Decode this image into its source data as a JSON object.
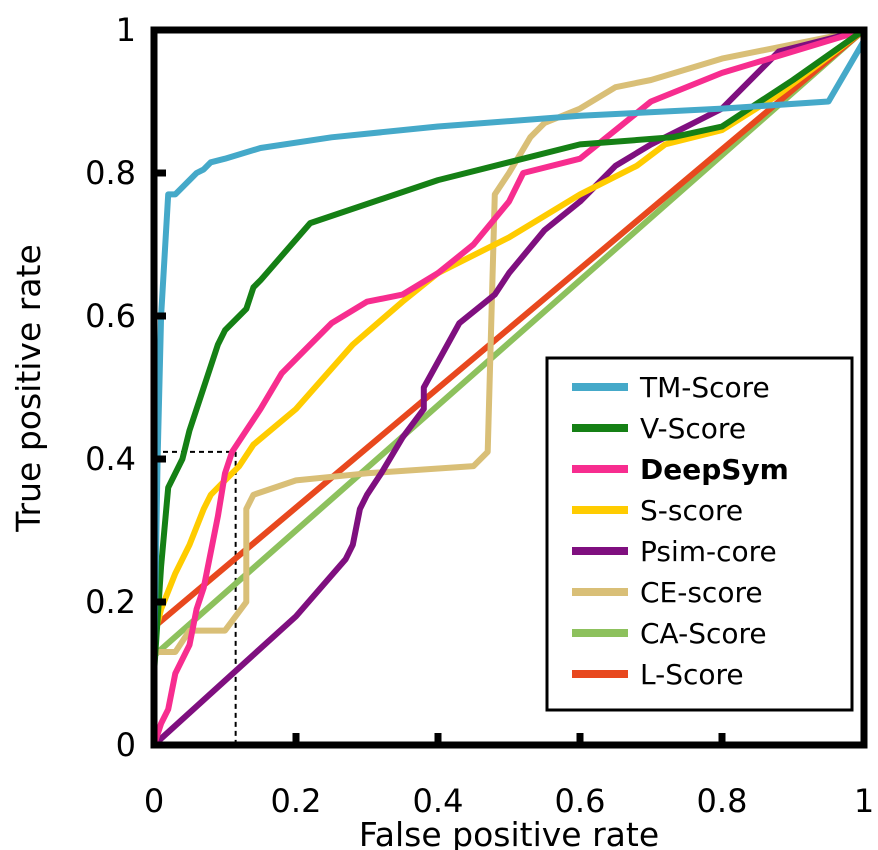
{
  "chart_data": {
    "type": "line",
    "title": "",
    "xlabel": "False positive rate",
    "ylabel": "True positive rate",
    "xlim": [
      0,
      1
    ],
    "ylim": [
      0,
      1
    ],
    "x_ticks": [
      "0",
      "0.2",
      "0.4",
      "0.6",
      "0.8",
      "1"
    ],
    "y_ticks": [
      "0",
      "0.2",
      "0.4",
      "0.6",
      "0.8",
      "1"
    ],
    "x_tick_values": [
      0,
      0.2,
      0.4,
      0.6,
      0.8,
      1
    ],
    "y_tick_values": [
      0,
      0.2,
      0.4,
      0.6,
      0.8,
      1
    ],
    "grid": false,
    "legend_position": "bottom-right",
    "annotation": {
      "type": "dashed-guide",
      "x": 0.115,
      "y": 0.41
    },
    "series": [
      {
        "name": "TM-Score",
        "color": "#45a9c9",
        "bold": false,
        "x": [
          0,
          0.005,
          0.01,
          0.02,
          0.03,
          0.04,
          0.05,
          0.06,
          0.07,
          0.08,
          0.1,
          0.15,
          0.25,
          0.4,
          0.6,
          0.8,
          0.95,
          1
        ],
        "y": [
          0.1,
          0.4,
          0.6,
          0.77,
          0.77,
          0.78,
          0.79,
          0.8,
          0.805,
          0.815,
          0.82,
          0.835,
          0.85,
          0.865,
          0.88,
          0.89,
          0.9,
          0.985
        ]
      },
      {
        "name": "V-Score",
        "color": "#158015",
        "bold": false,
        "x": [
          0,
          0.01,
          0.02,
          0.04,
          0.05,
          0.07,
          0.09,
          0.1,
          0.12,
          0.13,
          0.14,
          0.15,
          0.22,
          0.4,
          0.6,
          0.73,
          0.8,
          0.9,
          1
        ],
        "y": [
          0.1,
          0.25,
          0.36,
          0.4,
          0.44,
          0.5,
          0.56,
          0.58,
          0.6,
          0.61,
          0.64,
          0.65,
          0.73,
          0.79,
          0.84,
          0.85,
          0.865,
          0.93,
          1
        ]
      },
      {
        "name": "DeepSym",
        "color": "#f72d8f",
        "bold": true,
        "x": [
          0,
          0.01,
          0.02,
          0.03,
          0.05,
          0.06,
          0.07,
          0.08,
          0.09,
          0.1,
          0.11,
          0.13,
          0.15,
          0.18,
          0.22,
          0.25,
          0.3,
          0.35,
          0.4,
          0.45,
          0.5,
          0.52,
          0.6,
          0.7,
          0.8,
          0.9,
          1
        ],
        "y": [
          0,
          0.03,
          0.05,
          0.1,
          0.14,
          0.19,
          0.22,
          0.27,
          0.32,
          0.38,
          0.41,
          0.44,
          0.47,
          0.52,
          0.56,
          0.59,
          0.62,
          0.63,
          0.66,
          0.7,
          0.76,
          0.8,
          0.82,
          0.9,
          0.94,
          0.97,
          1
        ]
      },
      {
        "name": "S-score",
        "color": "#ffcc00",
        "bold": false,
        "x": [
          0,
          0.01,
          0.03,
          0.05,
          0.07,
          0.08,
          0.1,
          0.12,
          0.14,
          0.2,
          0.28,
          0.35,
          0.4,
          0.5,
          0.55,
          0.6,
          0.68,
          0.72,
          0.8,
          0.88,
          1
        ],
        "y": [
          0.15,
          0.19,
          0.24,
          0.28,
          0.33,
          0.35,
          0.37,
          0.39,
          0.42,
          0.47,
          0.56,
          0.62,
          0.66,
          0.71,
          0.74,
          0.77,
          0.81,
          0.84,
          0.86,
          0.91,
          1
        ]
      },
      {
        "name": "Psim-core",
        "color": "#7f0f7f",
        "bold": false,
        "x": [
          0,
          0.1,
          0.2,
          0.27,
          0.28,
          0.29,
          0.3,
          0.32,
          0.35,
          0.38,
          0.38,
          0.43,
          0.48,
          0.5,
          0.55,
          0.6,
          0.65,
          0.7,
          0.76,
          0.8,
          0.88,
          1
        ],
        "y": [
          0,
          0.09,
          0.18,
          0.26,
          0.28,
          0.33,
          0.35,
          0.38,
          0.43,
          0.47,
          0.5,
          0.59,
          0.63,
          0.66,
          0.72,
          0.76,
          0.81,
          0.84,
          0.87,
          0.89,
          0.97,
          1
        ]
      },
      {
        "name": "CE-score",
        "color": "#d9bf77",
        "bold": false,
        "x": [
          0,
          0.03,
          0.05,
          0.1,
          0.13,
          0.13,
          0.14,
          0.2,
          0.3,
          0.45,
          0.47,
          0.48,
          0.5,
          0.53,
          0.55,
          0.6,
          0.65,
          0.7,
          0.8,
          0.9,
          1
        ],
        "y": [
          0.13,
          0.13,
          0.16,
          0.16,
          0.2,
          0.33,
          0.35,
          0.37,
          0.38,
          0.39,
          0.41,
          0.77,
          0.8,
          0.85,
          0.87,
          0.89,
          0.92,
          0.93,
          0.96,
          0.98,
          1
        ]
      },
      {
        "name": "CA-Score",
        "color": "#8dc15d",
        "bold": false,
        "x": [
          0,
          1
        ],
        "y": [
          0.125,
          1
        ]
      },
      {
        "name": "L-Score",
        "color": "#e8481e",
        "bold": false,
        "x": [
          0,
          1
        ],
        "y": [
          0.165,
          1
        ]
      }
    ]
  }
}
